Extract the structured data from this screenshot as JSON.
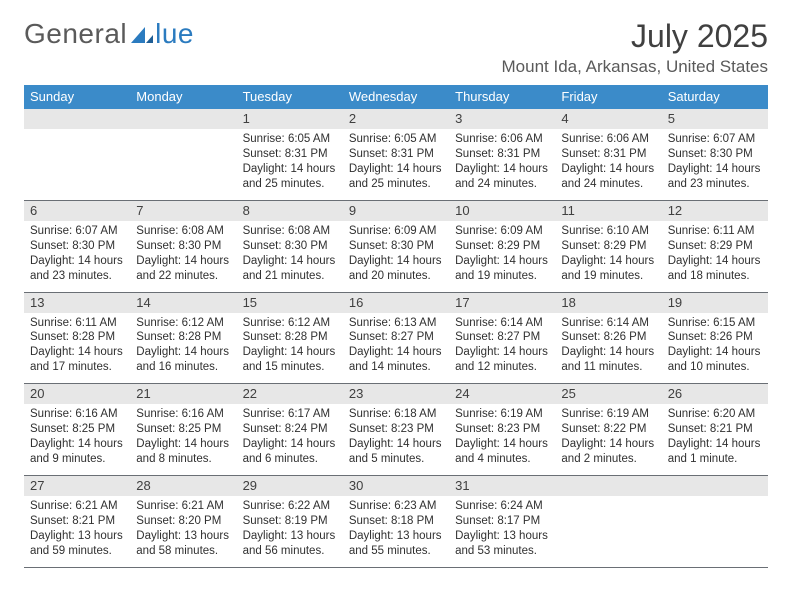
{
  "logo": {
    "part1": "General",
    "part2": "lue"
  },
  "title": "July 2025",
  "location": "Mount Ida, Arkansas, United States",
  "colors": {
    "header_bg": "#3b8bc9",
    "header_fg": "#ffffff",
    "daynum_bg": "#e7e7e7",
    "border": "#6a6f75",
    "text": "#303030",
    "title": "#404040"
  },
  "weekdays": [
    "Sunday",
    "Monday",
    "Tuesday",
    "Wednesday",
    "Thursday",
    "Friday",
    "Saturday"
  ],
  "weeks": [
    [
      {
        "n": "",
        "sr": "",
        "ss": "",
        "dl": ""
      },
      {
        "n": "",
        "sr": "",
        "ss": "",
        "dl": ""
      },
      {
        "n": "1",
        "sr": "6:05 AM",
        "ss": "8:31 PM",
        "dl": "14 hours and 25 minutes."
      },
      {
        "n": "2",
        "sr": "6:05 AM",
        "ss": "8:31 PM",
        "dl": "14 hours and 25 minutes."
      },
      {
        "n": "3",
        "sr": "6:06 AM",
        "ss": "8:31 PM",
        "dl": "14 hours and 24 minutes."
      },
      {
        "n": "4",
        "sr": "6:06 AM",
        "ss": "8:31 PM",
        "dl": "14 hours and 24 minutes."
      },
      {
        "n": "5",
        "sr": "6:07 AM",
        "ss": "8:30 PM",
        "dl": "14 hours and 23 minutes."
      }
    ],
    [
      {
        "n": "6",
        "sr": "6:07 AM",
        "ss": "8:30 PM",
        "dl": "14 hours and 23 minutes."
      },
      {
        "n": "7",
        "sr": "6:08 AM",
        "ss": "8:30 PM",
        "dl": "14 hours and 22 minutes."
      },
      {
        "n": "8",
        "sr": "6:08 AM",
        "ss": "8:30 PM",
        "dl": "14 hours and 21 minutes."
      },
      {
        "n": "9",
        "sr": "6:09 AM",
        "ss": "8:30 PM",
        "dl": "14 hours and 20 minutes."
      },
      {
        "n": "10",
        "sr": "6:09 AM",
        "ss": "8:29 PM",
        "dl": "14 hours and 19 minutes."
      },
      {
        "n": "11",
        "sr": "6:10 AM",
        "ss": "8:29 PM",
        "dl": "14 hours and 19 minutes."
      },
      {
        "n": "12",
        "sr": "6:11 AM",
        "ss": "8:29 PM",
        "dl": "14 hours and 18 minutes."
      }
    ],
    [
      {
        "n": "13",
        "sr": "6:11 AM",
        "ss": "8:28 PM",
        "dl": "14 hours and 17 minutes."
      },
      {
        "n": "14",
        "sr": "6:12 AM",
        "ss": "8:28 PM",
        "dl": "14 hours and 16 minutes."
      },
      {
        "n": "15",
        "sr": "6:12 AM",
        "ss": "8:28 PM",
        "dl": "14 hours and 15 minutes."
      },
      {
        "n": "16",
        "sr": "6:13 AM",
        "ss": "8:27 PM",
        "dl": "14 hours and 14 minutes."
      },
      {
        "n": "17",
        "sr": "6:14 AM",
        "ss": "8:27 PM",
        "dl": "14 hours and 12 minutes."
      },
      {
        "n": "18",
        "sr": "6:14 AM",
        "ss": "8:26 PM",
        "dl": "14 hours and 11 minutes."
      },
      {
        "n": "19",
        "sr": "6:15 AM",
        "ss": "8:26 PM",
        "dl": "14 hours and 10 minutes."
      }
    ],
    [
      {
        "n": "20",
        "sr": "6:16 AM",
        "ss": "8:25 PM",
        "dl": "14 hours and 9 minutes."
      },
      {
        "n": "21",
        "sr": "6:16 AM",
        "ss": "8:25 PM",
        "dl": "14 hours and 8 minutes."
      },
      {
        "n": "22",
        "sr": "6:17 AM",
        "ss": "8:24 PM",
        "dl": "14 hours and 6 minutes."
      },
      {
        "n": "23",
        "sr": "6:18 AM",
        "ss": "8:23 PM",
        "dl": "14 hours and 5 minutes."
      },
      {
        "n": "24",
        "sr": "6:19 AM",
        "ss": "8:23 PM",
        "dl": "14 hours and 4 minutes."
      },
      {
        "n": "25",
        "sr": "6:19 AM",
        "ss": "8:22 PM",
        "dl": "14 hours and 2 minutes."
      },
      {
        "n": "26",
        "sr": "6:20 AM",
        "ss": "8:21 PM",
        "dl": "14 hours and 1 minute."
      }
    ],
    [
      {
        "n": "27",
        "sr": "6:21 AM",
        "ss": "8:21 PM",
        "dl": "13 hours and 59 minutes."
      },
      {
        "n": "28",
        "sr": "6:21 AM",
        "ss": "8:20 PM",
        "dl": "13 hours and 58 minutes."
      },
      {
        "n": "29",
        "sr": "6:22 AM",
        "ss": "8:19 PM",
        "dl": "13 hours and 56 minutes."
      },
      {
        "n": "30",
        "sr": "6:23 AM",
        "ss": "8:18 PM",
        "dl": "13 hours and 55 minutes."
      },
      {
        "n": "31",
        "sr": "6:24 AM",
        "ss": "8:17 PM",
        "dl": "13 hours and 53 minutes."
      },
      {
        "n": "",
        "sr": "",
        "ss": "",
        "dl": ""
      },
      {
        "n": "",
        "sr": "",
        "ss": "",
        "dl": ""
      }
    ]
  ],
  "labels": {
    "sunrise": "Sunrise:",
    "sunset": "Sunset:",
    "daylight": "Daylight:"
  }
}
